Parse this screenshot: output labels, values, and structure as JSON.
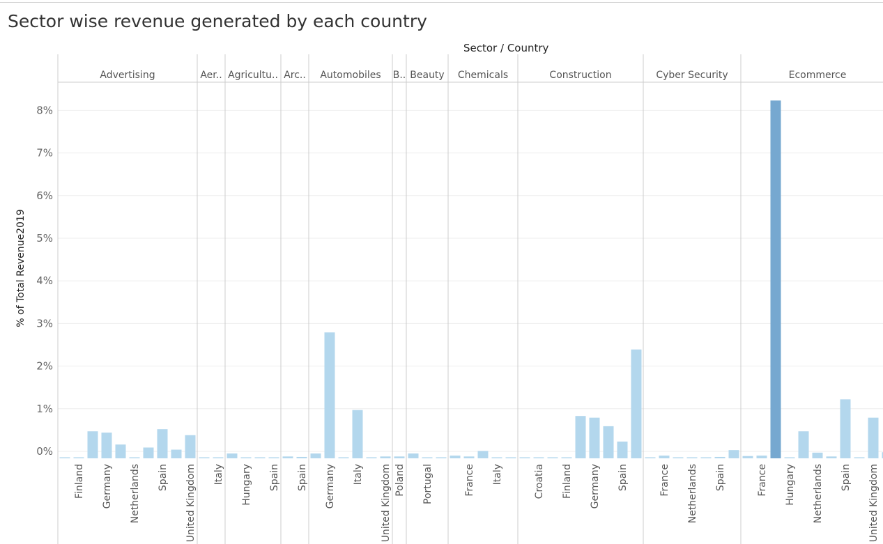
{
  "title": "Sector wise revenue generated by each country",
  "chart_data": {
    "type": "bar",
    "title": "Sector wise revenue generated by each country",
    "column_header": "Sector / Country",
    "ylabel": "% of Total Revenue2019",
    "ylim": [
      -0.18,
      8.85
    ],
    "yticks": [
      "0%",
      "1%",
      "2%",
      "3%",
      "4%",
      "5%",
      "6%",
      "7%",
      "8%"
    ],
    "colors": {
      "bar": "#b3d7ed",
      "highlight": "#76a8d0",
      "grid": "#eeeeee",
      "divider": "#cccccc"
    },
    "sectors": [
      {
        "name": "Advertising",
        "bars": [
          {
            "country": "",
            "value": -0.16
          },
          {
            "country": "Finland",
            "value": -0.16
          },
          {
            "country": "",
            "value": 0.47
          },
          {
            "country": "Germany",
            "value": 0.44
          },
          {
            "country": "",
            "value": 0.16
          },
          {
            "country": "Netherlands",
            "value": -0.16
          },
          {
            "country": "",
            "value": 0.09
          },
          {
            "country": "Spain",
            "value": 0.52
          },
          {
            "country": "",
            "value": 0.04
          },
          {
            "country": "United Kingdom",
            "value": 0.38
          }
        ]
      },
      {
        "name": "Aer..",
        "bars": [
          {
            "country": "",
            "value": -0.16
          },
          {
            "country": "Italy",
            "value": -0.15
          }
        ]
      },
      {
        "name": "Agricultu..",
        "bars": [
          {
            "country": "",
            "value": -0.05
          },
          {
            "country": "Hungary",
            "value": -0.16
          },
          {
            "country": "",
            "value": -0.15
          },
          {
            "country": "Spain",
            "value": -0.14
          }
        ]
      },
      {
        "name": "Arc..",
        "bars": [
          {
            "country": "",
            "value": -0.12
          },
          {
            "country": "Spain",
            "value": -0.13
          }
        ]
      },
      {
        "name": "Automobiles",
        "bars": [
          {
            "country": "",
            "value": -0.05
          },
          {
            "country": "Germany",
            "value": 2.79
          },
          {
            "country": "",
            "value": -0.15
          },
          {
            "country": "Italy",
            "value": 0.97
          },
          {
            "country": "",
            "value": -0.15
          },
          {
            "country": "United Kingdom",
            "value": -0.12
          }
        ]
      },
      {
        "name": "B..",
        "bars": [
          {
            "country": "Poland",
            "value": -0.12
          }
        ]
      },
      {
        "name": "Beauty",
        "bars": [
          {
            "country": "",
            "value": -0.05
          },
          {
            "country": "Portugal",
            "value": -0.17
          },
          {
            "country": "",
            "value": -0.17
          }
        ]
      },
      {
        "name": "Chemicals",
        "bars": [
          {
            "country": "",
            "value": -0.1
          },
          {
            "country": "France",
            "value": -0.12
          },
          {
            "country": "",
            "value": 0.01
          },
          {
            "country": "Italy",
            "value": -0.17
          },
          {
            "country": "",
            "value": -0.17
          }
        ]
      },
      {
        "name": "Construction",
        "bars": [
          {
            "country": "",
            "value": -0.15
          },
          {
            "country": "Croatia",
            "value": -0.17
          },
          {
            "country": "",
            "value": -0.17
          },
          {
            "country": "Finland",
            "value": -0.17
          },
          {
            "country": "",
            "value": 0.83
          },
          {
            "country": "Germany",
            "value": 0.79
          },
          {
            "country": "",
            "value": 0.59
          },
          {
            "country": "Spain",
            "value": 0.23
          },
          {
            "country": "",
            "value": 2.39
          }
        ]
      },
      {
        "name": "Cyber Security",
        "bars": [
          {
            "country": "",
            "value": -0.16
          },
          {
            "country": "France",
            "value": -0.1
          },
          {
            "country": "",
            "value": -0.15
          },
          {
            "country": "Netherlands",
            "value": -0.15
          },
          {
            "country": "",
            "value": -0.17
          },
          {
            "country": "Spain",
            "value": -0.13
          },
          {
            "country": "",
            "value": 0.03
          }
        ]
      },
      {
        "name": "Ecommerce",
        "bars": [
          {
            "country": "",
            "value": -0.11
          },
          {
            "country": "France",
            "value": -0.1
          },
          {
            "country": "",
            "value": 8.23,
            "highlight": true
          },
          {
            "country": "Hungary",
            "value": -0.16
          },
          {
            "country": "",
            "value": 0.47
          },
          {
            "country": "Netherlands",
            "value": -0.03
          },
          {
            "country": "",
            "value": -0.12
          },
          {
            "country": "Spain",
            "value": 1.22
          },
          {
            "country": "",
            "value": -0.15
          },
          {
            "country": "United Kingdom",
            "value": 0.79
          },
          {
            "country": "",
            "value": -0.02
          }
        ]
      }
    ]
  }
}
